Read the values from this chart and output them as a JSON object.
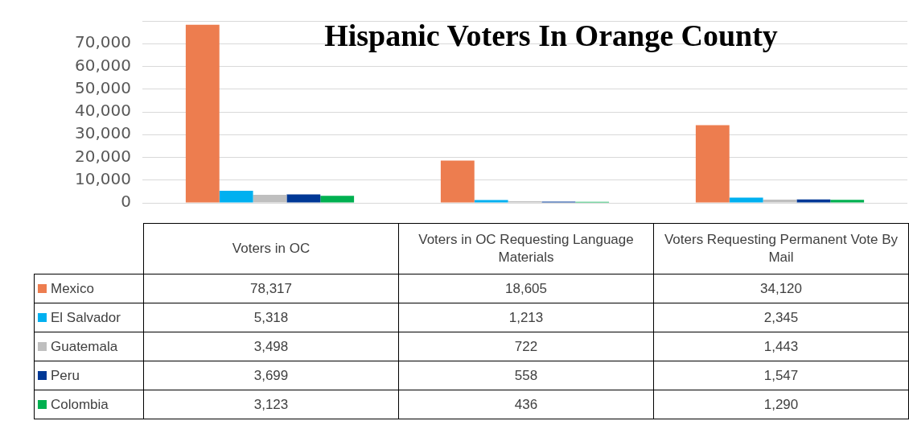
{
  "chart_data": {
    "type": "bar",
    "title": "Hispanic Voters In Orange County",
    "categories": [
      "Voters in OC",
      "Voters in OC Requesting Language Materials",
      "Voters Requesting Permanent Vote By Mail"
    ],
    "series": [
      {
        "name": "Mexico",
        "color": "#ed7d4f",
        "values": [
          78317,
          18605,
          34120
        ],
        "value_labels": [
          "78,317",
          "18,605",
          "34,120"
        ]
      },
      {
        "name": "El Salvador",
        "color": "#00b0f0",
        "values": [
          5318,
          1213,
          2345
        ],
        "value_labels": [
          "5,318",
          "1,213",
          "2,345"
        ]
      },
      {
        "name": "Guatemala",
        "color": "#bfbfbf",
        "values": [
          3498,
          722,
          1443
        ],
        "value_labels": [
          "3,498",
          "722",
          "1,443"
        ]
      },
      {
        "name": "Peru",
        "color": "#003896",
        "values": [
          3699,
          558,
          1547
        ],
        "value_labels": [
          "3,699",
          "558",
          "1,547"
        ]
      },
      {
        "name": "Colombia",
        "color": "#00b050",
        "values": [
          3123,
          436,
          1290
        ],
        "value_labels": [
          "3,123",
          "436",
          "1,290"
        ]
      }
    ],
    "ylim": [
      0,
      80000
    ],
    "yticks": [
      {
        "value": 0,
        "label": "0"
      },
      {
        "value": 10000,
        "label": "10,000"
      },
      {
        "value": 20000,
        "label": "20,000"
      },
      {
        "value": 30000,
        "label": "30,000"
      },
      {
        "value": 40000,
        "label": "40,000"
      },
      {
        "value": 50000,
        "label": "50,000"
      },
      {
        "value": 60000,
        "label": "60,000"
      },
      {
        "value": 70000,
        "label": "70,000"
      },
      {
        "value": 80000,
        "label": null
      }
    ],
    "grid": "y",
    "legend": "bottom"
  }
}
